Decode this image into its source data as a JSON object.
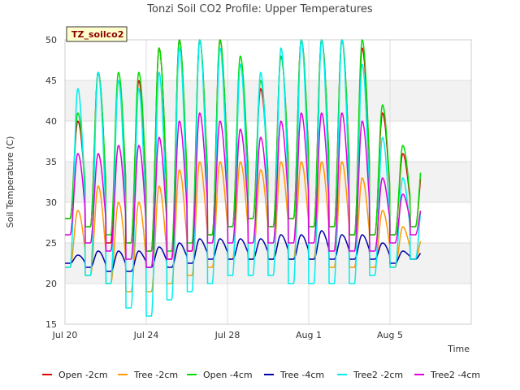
{
  "chart_data": {
    "type": "line",
    "title": "Tonzi Soil CO2 Profile: Upper Temperatures",
    "xlabel": "Time",
    "ylabel": "Soil Temperature (C)",
    "badge": "TZ_soilco2",
    "xlim": [
      0,
      20
    ],
    "ylim": [
      15,
      50
    ],
    "y_ticks": [
      15,
      20,
      25,
      30,
      35,
      40,
      45,
      50
    ],
    "x_ticks": [
      {
        "label": "Jul 20",
        "day": 0
      },
      {
        "label": "Jul 24",
        "day": 4
      },
      {
        "label": "Jul 28",
        "day": 8
      },
      {
        "label": "Aug 1",
        "day": 12
      },
      {
        "label": "Aug 5",
        "day": 16
      }
    ],
    "x_start_day": 0,
    "x_end_day": 17.5,
    "peak_phase": 0.63,
    "grid": true,
    "legend_position": "bottom",
    "series": [
      {
        "name": "Open -2cm",
        "color": "#dd0000",
        "mins": [
          28,
          27,
          25,
          25,
          24,
          23,
          24,
          26,
          27,
          28,
          27,
          28,
          27,
          27,
          26,
          26,
          26,
          27
        ],
        "maxs": [
          40,
          46,
          45,
          45,
          49,
          50,
          50,
          50,
          47,
          44,
          48,
          50,
          50,
          50,
          49,
          41,
          36,
          35
        ]
      },
      {
        "name": "Tree -2cm",
        "color": "#ff9900",
        "mins": [
          22,
          21,
          20,
          19,
          19,
          20,
          21,
          22,
          23,
          23,
          23,
          23,
          23,
          22,
          22,
          22,
          22,
          23
        ],
        "maxs": [
          29,
          32,
          30,
          30,
          32,
          34,
          35,
          35,
          35,
          34,
          35,
          35,
          35,
          35,
          33,
          29,
          27,
          26
        ]
      },
      {
        "name": "Open -4cm",
        "color": "#00dd00",
        "mins": [
          28,
          27,
          26,
          25,
          24,
          24,
          25,
          26,
          27,
          28,
          27,
          28,
          27,
          27,
          26,
          26,
          26,
          27
        ],
        "maxs": [
          41,
          46,
          46,
          46,
          49,
          50,
          50,
          50,
          48,
          45,
          48,
          50,
          50,
          50,
          50,
          42,
          37,
          36
        ]
      },
      {
        "name": "Tree -4cm",
        "color": "#0000aa",
        "mins": [
          22.5,
          22,
          21.5,
          21.5,
          22,
          22,
          22.5,
          23,
          23,
          23,
          23,
          23,
          23,
          23,
          23,
          23,
          22.5,
          23
        ],
        "maxs": [
          23.5,
          24,
          24,
          24,
          24.5,
          25,
          25.5,
          25.5,
          25.5,
          25.5,
          26,
          26,
          26.5,
          26,
          26,
          25,
          24,
          24
        ]
      },
      {
        "name": "Tree2 -2cm",
        "color": "#00eeee",
        "mins": [
          22,
          21,
          20,
          17,
          16,
          18,
          19,
          20,
          21,
          21,
          21,
          20,
          20,
          20,
          20,
          21,
          22,
          23
        ],
        "maxs": [
          44,
          46,
          45,
          44,
          46,
          49,
          50,
          49,
          47,
          46,
          49,
          50,
          50,
          50,
          47,
          38,
          33,
          31
        ]
      },
      {
        "name": "Tree2 -4cm",
        "color": "#dd00dd",
        "mins": [
          26,
          25,
          24,
          23,
          22,
          23,
          24,
          25,
          25,
          25,
          25,
          25,
          25,
          24,
          24,
          24,
          25,
          26
        ],
        "maxs": [
          36,
          36,
          37,
          37,
          38,
          40,
          41,
          40,
          39,
          38,
          40,
          41,
          41,
          41,
          40,
          33,
          31,
          30
        ]
      }
    ]
  }
}
